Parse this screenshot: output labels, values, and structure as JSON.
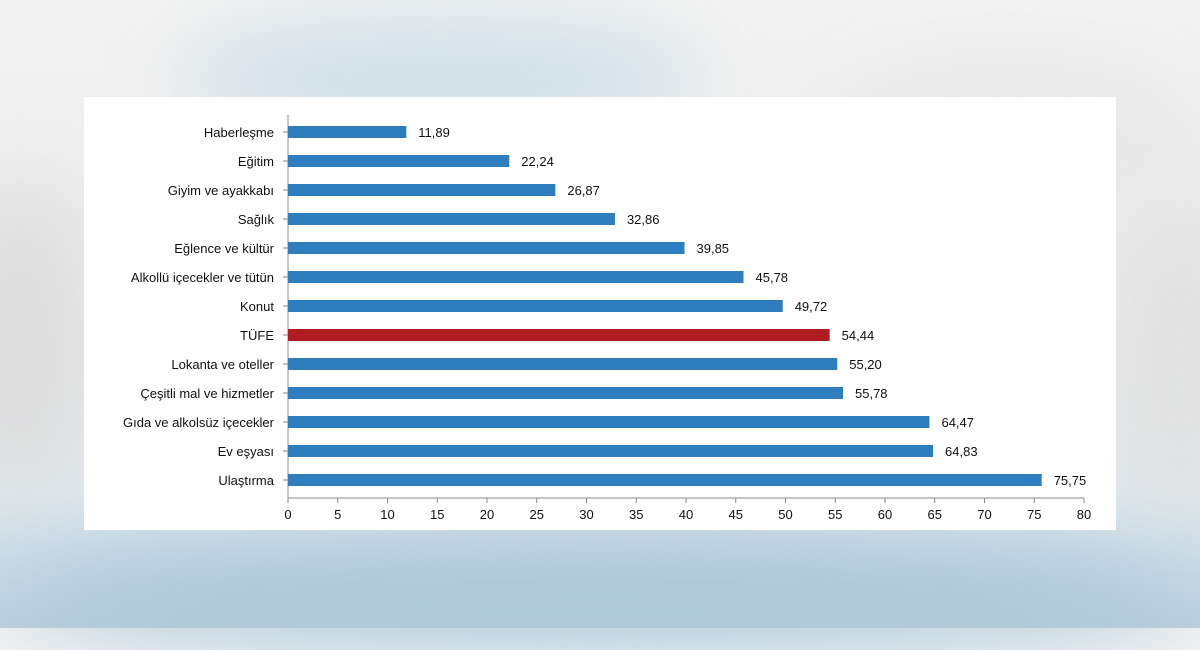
{
  "chart_data": {
    "type": "bar",
    "orientation": "horizontal",
    "categories": [
      "Haberleşme",
      "Eğitim",
      "Giyim ve ayakkabı",
      "Sağlık",
      "Eğlence ve kültür",
      "Alkollü içecekler ve tütün",
      "Konut",
      "TÜFE",
      "Lokanta ve oteller",
      "Çeşitli mal ve hizmetler",
      "Gıda ve alkolsüz içecekler",
      "Ev eşyası",
      "Ulaştırma"
    ],
    "values": [
      11.89,
      22.24,
      26.87,
      32.86,
      39.85,
      45.78,
      49.72,
      54.44,
      55.2,
      55.78,
      64.47,
      64.83,
      75.75
    ],
    "value_labels": [
      "11,89",
      "22,24",
      "26,87",
      "32,86",
      "39,85",
      "45,78",
      "49,72",
      "54,44",
      "55,20",
      "55,78",
      "64,47",
      "64,83",
      "75,75"
    ],
    "x_ticks": [
      0,
      5,
      10,
      15,
      20,
      25,
      30,
      35,
      40,
      45,
      50,
      55,
      60,
      65,
      70,
      75,
      80
    ],
    "xlim": [
      0,
      80
    ],
    "highlight_category": "TÜFE",
    "colors": {
      "bar": "#2e7dbf",
      "highlight": "#b01c22",
      "axis": "#888888"
    },
    "grid": false,
    "legend": false,
    "title": "",
    "xlabel": "",
    "ylabel": ""
  }
}
